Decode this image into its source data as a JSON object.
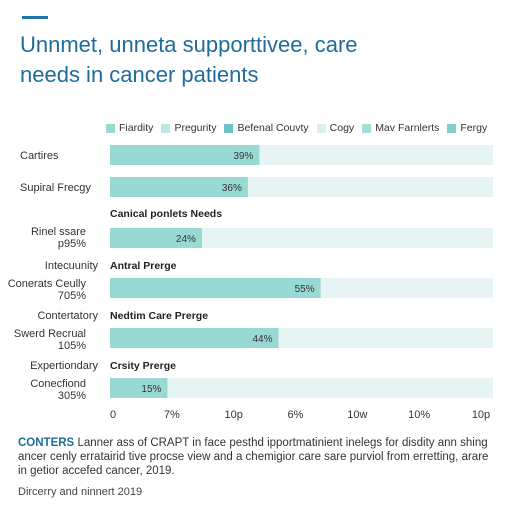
{
  "header": {
    "title_line1": "Unnmet, unneta supporttivee, care",
    "title_line2": "needs in cancer patients"
  },
  "legend": [
    {
      "label": "Fiardity",
      "color": "#9bd8d2"
    },
    {
      "label": "Pregurity",
      "color": "#bde7e2"
    },
    {
      "label": "Befenal Couvty",
      "color": "#6cc3c7"
    },
    {
      "label": "Cogy",
      "color": "#dcefee"
    },
    {
      "label": "Mav Farnlerts",
      "color": "#a6ddd8"
    },
    {
      "label": "Fergy",
      "color": "#7fcfcb"
    }
  ],
  "chart_data": {
    "type": "bar",
    "orientation": "horizontal",
    "categories": [
      "Cartires",
      "Supiral Frecgy",
      "Rinel ssare p95%",
      "Conerats Ceully 705%",
      "Swerd Recrual 105%",
      "Conecfiond 305%"
    ],
    "values": [
      39,
      36,
      24,
      55,
      44,
      15
    ],
    "value_labels": [
      "39%",
      "36%",
      "24%",
      "55%",
      "44%",
      "15%"
    ],
    "xlim": [
      0,
      100
    ],
    "x_tick_labels": [
      "0",
      "7%",
      "10p",
      "6%",
      "10w",
      "10%",
      "10p"
    ],
    "section_labels": [
      "Canical ponlets Needs",
      "Antral Prerge",
      "Nedtim Care Prerge",
      "Crsity Prerge"
    ],
    "row_side_labels": [
      "Intecuunity",
      "Contertatory",
      "Expertiondary"
    ],
    "colors": {
      "bar": "#99d9d3",
      "track": "#e6f4f3",
      "label": "#333333"
    },
    "grid": false
  },
  "caption": {
    "lead": "CONTERS",
    "text": "Lanner ass of CRAPT in face pesthd ipportmatinient inelegs for disdity ann shing ancer cenly erratairid tive procse view and a chemigior care sare purviol from erretting, arare in getior accefed cancer, 2019."
  },
  "footer": {
    "source": "Dircerry and ninnert 2019"
  }
}
